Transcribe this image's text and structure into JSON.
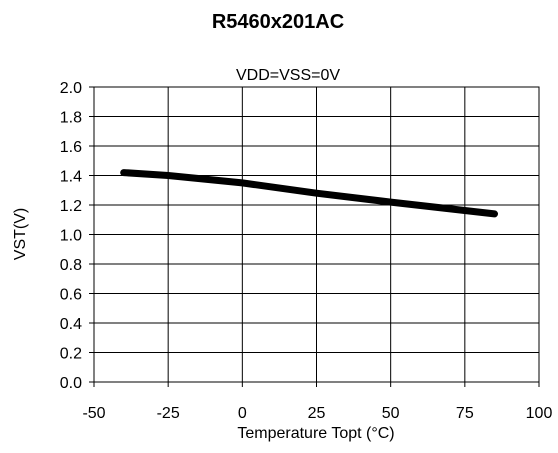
{
  "chart_data": {
    "type": "line",
    "title": "R5460x201AC",
    "subtitle": "VDD=VSS=0V",
    "xlabel": "Temperature Topt (°C)",
    "ylabel": "VST(V)",
    "xlim": [
      -50,
      100
    ],
    "ylim": [
      0.0,
      2.0
    ],
    "x_ticks": [
      "-50",
      "-25",
      "0",
      "25",
      "50",
      "75",
      "100"
    ],
    "y_ticks": [
      "0.0",
      "0.2",
      "0.4",
      "0.6",
      "0.8",
      "1.0",
      "1.2",
      "1.4",
      "1.6",
      "1.8",
      "2.0"
    ],
    "grid": true,
    "series": [
      {
        "x": [
          -40,
          -25,
          0,
          25,
          50,
          85
        ],
        "y": [
          1.42,
          1.4,
          1.35,
          1.28,
          1.22,
          1.14
        ],
        "color": "#000000"
      }
    ]
  }
}
